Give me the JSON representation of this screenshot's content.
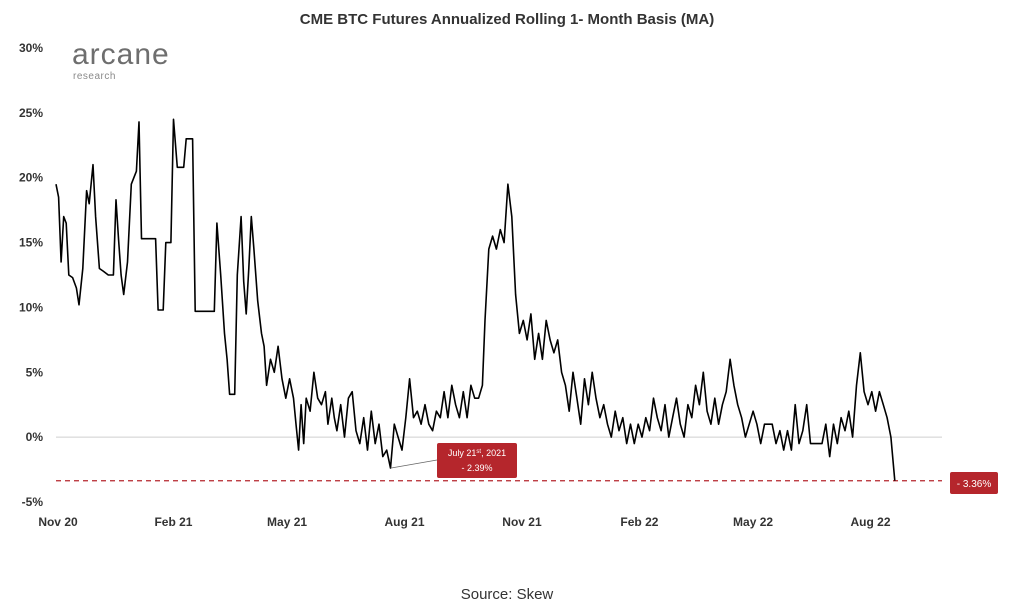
{
  "logo": {
    "main": "arcane",
    "sub": "research"
  },
  "source": "Source: Skew",
  "chart_data": {
    "type": "line",
    "title": "CME BTC Futures Annualized Rolling 1- Month Basis (MA)",
    "xlabel": "",
    "ylabel": "",
    "ylim": [
      -5,
      30
    ],
    "yticks": [
      30,
      25,
      20,
      15,
      10,
      5,
      0,
      -5
    ],
    "ytick_labels": [
      "30%",
      "25%",
      "20%",
      "15%",
      "10%",
      "5%",
      "0%",
      "-5%"
    ],
    "xlim": [
      "2020-11-01",
      "2022-09-26"
    ],
    "xticks": [
      {
        "date": "2020-11-01",
        "label": "Nov 20"
      },
      {
        "date": "2021-02-01",
        "label": "Feb 21"
      },
      {
        "date": "2021-05-01",
        "label": "May 21"
      },
      {
        "date": "2021-08-01",
        "label": "Aug 21"
      },
      {
        "date": "2021-11-01",
        "label": "Nov 21"
      },
      {
        "date": "2022-02-01",
        "label": "Feb 22"
      },
      {
        "date": "2022-05-01",
        "label": "May 22"
      },
      {
        "date": "2022-08-01",
        "label": "Aug 22"
      }
    ],
    "grid": false,
    "line_color": "#000000",
    "ref_line": {
      "y": -3.36,
      "color": "#b5262c"
    },
    "annotations": [
      {
        "date": "2021-07-21",
        "value": -2.39,
        "label_main": "July 21",
        "label_sup": "st",
        "label_year": ", 2021",
        "label_value": "- 2.39%"
      },
      {
        "date": "2022-09-21",
        "value": -3.36,
        "label_value": "- 3.36%"
      }
    ],
    "series": [
      {
        "points": [
          [
            "2020-11-01",
            19.5
          ],
          [
            "2020-11-03",
            18.5
          ],
          [
            "2020-11-05",
            13.5
          ],
          [
            "2020-11-07",
            17.0
          ],
          [
            "2020-11-09",
            16.5
          ],
          [
            "2020-11-11",
            12.5
          ],
          [
            "2020-11-14",
            12.3
          ],
          [
            "2020-11-17",
            11.5
          ],
          [
            "2020-11-19",
            10.2
          ],
          [
            "2020-11-22",
            13.0
          ],
          [
            "2020-11-25",
            19.0
          ],
          [
            "2020-11-27",
            18.0
          ],
          [
            "2020-11-30",
            21.0
          ],
          [
            "2020-12-02",
            17.0
          ],
          [
            "2020-12-05",
            13.0
          ],
          [
            "2020-12-08",
            12.8
          ],
          [
            "2020-12-12",
            12.5
          ],
          [
            "2020-12-16",
            12.5
          ],
          [
            "2020-12-18",
            18.3
          ],
          [
            "2020-12-20",
            15.2
          ],
          [
            "2020-12-22",
            12.5
          ],
          [
            "2020-12-24",
            11.0
          ],
          [
            "2020-12-27",
            13.5
          ],
          [
            "2020-12-30",
            19.5
          ],
          [
            "2021-01-03",
            20.5
          ],
          [
            "2021-01-05",
            24.3
          ],
          [
            "2021-01-07",
            15.3
          ],
          [
            "2021-01-12",
            15.3
          ],
          [
            "2021-01-18",
            15.3
          ],
          [
            "2021-01-20",
            9.8
          ],
          [
            "2021-01-24",
            9.8
          ],
          [
            "2021-01-26",
            15.0
          ],
          [
            "2021-01-30",
            15.0
          ],
          [
            "2021-02-01",
            24.5
          ],
          [
            "2021-02-04",
            20.8
          ],
          [
            "2021-02-09",
            20.8
          ],
          [
            "2021-02-11",
            23.0
          ],
          [
            "2021-02-16",
            23.0
          ],
          [
            "2021-02-18",
            9.7
          ],
          [
            "2021-02-24",
            9.7
          ],
          [
            "2021-03-05",
            9.7
          ],
          [
            "2021-03-07",
            16.5
          ],
          [
            "2021-03-10",
            12.5
          ],
          [
            "2021-03-13",
            8.0
          ],
          [
            "2021-03-15",
            6.0
          ],
          [
            "2021-03-17",
            3.3
          ],
          [
            "2021-03-21",
            3.3
          ],
          [
            "2021-03-23",
            12.5
          ],
          [
            "2021-03-26",
            17.0
          ],
          [
            "2021-03-28",
            12.0
          ],
          [
            "2021-03-30",
            9.5
          ],
          [
            "2021-04-01",
            13.0
          ],
          [
            "2021-04-03",
            17.0
          ],
          [
            "2021-04-05",
            14.5
          ],
          [
            "2021-04-08",
            10.5
          ],
          [
            "2021-04-11",
            8.0
          ],
          [
            "2021-04-13",
            7.0
          ],
          [
            "2021-04-15",
            4.0
          ],
          [
            "2021-04-18",
            6.0
          ],
          [
            "2021-04-21",
            5.0
          ],
          [
            "2021-04-24",
            7.0
          ],
          [
            "2021-04-27",
            4.5
          ],
          [
            "2021-04-30",
            3.0
          ],
          [
            "2021-05-03",
            4.5
          ],
          [
            "2021-05-06",
            3.0
          ],
          [
            "2021-05-08",
            1.0
          ],
          [
            "2021-05-10",
            -1.0
          ],
          [
            "2021-05-12",
            2.5
          ],
          [
            "2021-05-14",
            -0.5
          ],
          [
            "2021-05-16",
            3.0
          ],
          [
            "2021-05-19",
            2.0
          ],
          [
            "2021-05-22",
            5.0
          ],
          [
            "2021-05-25",
            3.0
          ],
          [
            "2021-05-28",
            2.5
          ],
          [
            "2021-05-31",
            3.5
          ],
          [
            "2021-06-02",
            1.0
          ],
          [
            "2021-06-05",
            3.0
          ],
          [
            "2021-06-07",
            1.5
          ],
          [
            "2021-06-09",
            0.5
          ],
          [
            "2021-06-12",
            2.5
          ],
          [
            "2021-06-15",
            0.0
          ],
          [
            "2021-06-18",
            3.0
          ],
          [
            "2021-06-21",
            3.5
          ],
          [
            "2021-06-24",
            0.5
          ],
          [
            "2021-06-27",
            -0.5
          ],
          [
            "2021-06-30",
            1.5
          ],
          [
            "2021-07-03",
            -1.0
          ],
          [
            "2021-07-06",
            2.0
          ],
          [
            "2021-07-09",
            -0.5
          ],
          [
            "2021-07-12",
            1.0
          ],
          [
            "2021-07-15",
            -1.5
          ],
          [
            "2021-07-18",
            -1.0
          ],
          [
            "2021-07-21",
            -2.39
          ],
          [
            "2021-07-24",
            1.0
          ],
          [
            "2021-07-27",
            0.0
          ],
          [
            "2021-07-30",
            -1.0
          ],
          [
            "2021-08-02",
            1.5
          ],
          [
            "2021-08-05",
            4.5
          ],
          [
            "2021-08-08",
            1.5
          ],
          [
            "2021-08-11",
            2.0
          ],
          [
            "2021-08-14",
            1.0
          ],
          [
            "2021-08-17",
            2.5
          ],
          [
            "2021-08-20",
            1.0
          ],
          [
            "2021-08-23",
            0.5
          ],
          [
            "2021-08-26",
            2.0
          ],
          [
            "2021-08-29",
            1.5
          ],
          [
            "2021-09-01",
            3.5
          ],
          [
            "2021-09-04",
            1.5
          ],
          [
            "2021-09-07",
            4.0
          ],
          [
            "2021-09-10",
            2.5
          ],
          [
            "2021-09-13",
            1.5
          ],
          [
            "2021-09-16",
            3.5
          ],
          [
            "2021-09-19",
            1.5
          ],
          [
            "2021-09-22",
            4.0
          ],
          [
            "2021-09-25",
            3.0
          ],
          [
            "2021-09-28",
            3.0
          ],
          [
            "2021-10-01",
            4.0
          ],
          [
            "2021-10-03",
            9.0
          ],
          [
            "2021-10-06",
            14.5
          ],
          [
            "2021-10-09",
            15.5
          ],
          [
            "2021-10-12",
            14.5
          ],
          [
            "2021-10-15",
            16.0
          ],
          [
            "2021-10-18",
            15.0
          ],
          [
            "2021-10-21",
            19.5
          ],
          [
            "2021-10-24",
            17.0
          ],
          [
            "2021-10-27",
            11.0
          ],
          [
            "2021-10-30",
            8.0
          ],
          [
            "2021-11-02",
            9.0
          ],
          [
            "2021-11-05",
            7.5
          ],
          [
            "2021-11-08",
            9.5
          ],
          [
            "2021-11-11",
            6.0
          ],
          [
            "2021-11-14",
            8.0
          ],
          [
            "2021-11-17",
            6.0
          ],
          [
            "2021-11-20",
            9.0
          ],
          [
            "2021-11-23",
            7.5
          ],
          [
            "2021-11-26",
            6.5
          ],
          [
            "2021-11-29",
            7.5
          ],
          [
            "2021-12-02",
            5.0
          ],
          [
            "2021-12-05",
            4.0
          ],
          [
            "2021-12-08",
            2.0
          ],
          [
            "2021-12-11",
            5.0
          ],
          [
            "2021-12-14",
            3.0
          ],
          [
            "2021-12-17",
            1.0
          ],
          [
            "2021-12-20",
            4.5
          ],
          [
            "2021-12-23",
            2.5
          ],
          [
            "2021-12-26",
            5.0
          ],
          [
            "2021-12-29",
            3.0
          ],
          [
            "2022-01-01",
            1.5
          ],
          [
            "2022-01-04",
            2.5
          ],
          [
            "2022-01-07",
            1.0
          ],
          [
            "2022-01-10",
            0.0
          ],
          [
            "2022-01-13",
            2.0
          ],
          [
            "2022-01-16",
            0.5
          ],
          [
            "2022-01-19",
            1.5
          ],
          [
            "2022-01-22",
            -0.5
          ],
          [
            "2022-01-25",
            1.0
          ],
          [
            "2022-01-28",
            -0.5
          ],
          [
            "2022-01-31",
            1.0
          ],
          [
            "2022-02-03",
            0.0
          ],
          [
            "2022-02-06",
            1.5
          ],
          [
            "2022-02-09",
            0.5
          ],
          [
            "2022-02-12",
            3.0
          ],
          [
            "2022-02-15",
            1.5
          ],
          [
            "2022-02-18",
            0.5
          ],
          [
            "2022-02-21",
            2.5
          ],
          [
            "2022-02-24",
            0.0
          ],
          [
            "2022-02-27",
            1.5
          ],
          [
            "2022-03-02",
            3.0
          ],
          [
            "2022-03-05",
            1.0
          ],
          [
            "2022-03-08",
            0.0
          ],
          [
            "2022-03-11",
            2.5
          ],
          [
            "2022-03-14",
            1.5
          ],
          [
            "2022-03-17",
            4.0
          ],
          [
            "2022-03-20",
            2.5
          ],
          [
            "2022-03-23",
            5.0
          ],
          [
            "2022-03-26",
            2.0
          ],
          [
            "2022-03-29",
            1.0
          ],
          [
            "2022-04-01",
            3.0
          ],
          [
            "2022-04-04",
            1.0
          ],
          [
            "2022-04-07",
            2.5
          ],
          [
            "2022-04-10",
            3.5
          ],
          [
            "2022-04-13",
            6.0
          ],
          [
            "2022-04-16",
            4.0
          ],
          [
            "2022-04-19",
            2.5
          ],
          [
            "2022-04-22",
            1.5
          ],
          [
            "2022-04-25",
            0.0
          ],
          [
            "2022-04-28",
            1.0
          ],
          [
            "2022-05-01",
            2.0
          ],
          [
            "2022-05-04",
            1.0
          ],
          [
            "2022-05-07",
            -0.5
          ],
          [
            "2022-05-10",
            1.0
          ],
          [
            "2022-05-13",
            1.0
          ],
          [
            "2022-05-16",
            1.0
          ],
          [
            "2022-05-19",
            -0.5
          ],
          [
            "2022-05-22",
            0.5
          ],
          [
            "2022-05-25",
            -1.0
          ],
          [
            "2022-05-28",
            0.5
          ],
          [
            "2022-05-31",
            -1.0
          ],
          [
            "2022-06-03",
            2.5
          ],
          [
            "2022-06-06",
            -0.5
          ],
          [
            "2022-06-09",
            0.5
          ],
          [
            "2022-06-12",
            2.5
          ],
          [
            "2022-06-15",
            -0.5
          ],
          [
            "2022-06-18",
            -0.5
          ],
          [
            "2022-06-21",
            -0.5
          ],
          [
            "2022-06-24",
            -0.5
          ],
          [
            "2022-06-27",
            1.0
          ],
          [
            "2022-06-30",
            -1.5
          ],
          [
            "2022-07-03",
            1.0
          ],
          [
            "2022-07-06",
            -0.5
          ],
          [
            "2022-07-09",
            1.5
          ],
          [
            "2022-07-12",
            0.5
          ],
          [
            "2022-07-15",
            2.0
          ],
          [
            "2022-07-18",
            0.0
          ],
          [
            "2022-07-21",
            4.0
          ],
          [
            "2022-07-24",
            6.5
          ],
          [
            "2022-07-27",
            3.5
          ],
          [
            "2022-07-30",
            2.5
          ],
          [
            "2022-08-02",
            3.5
          ],
          [
            "2022-08-05",
            2.0
          ],
          [
            "2022-08-08",
            3.5
          ],
          [
            "2022-08-11",
            2.5
          ],
          [
            "2022-08-14",
            1.5
          ],
          [
            "2022-08-17",
            0.0
          ],
          [
            "2022-08-20",
            -3.36
          ]
        ]
      }
    ]
  }
}
